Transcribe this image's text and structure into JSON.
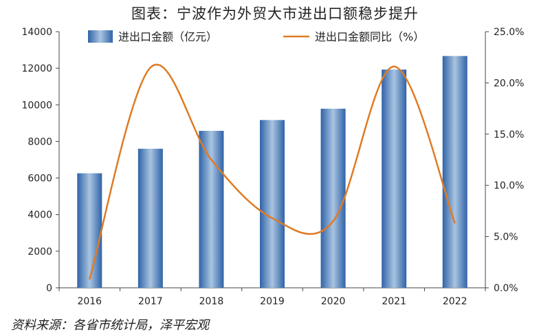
{
  "title": "图表：宁波作为外贸大市进出口额稳步提升",
  "source": "资料来源：各省市统计局，泽平宏观",
  "colors": {
    "bar": "#3a70b3",
    "bar_light": "#a9c4e0",
    "line": "#e07a22"
  },
  "chart_data": {
    "type": "bar+line",
    "categories": [
      "2016",
      "2017",
      "2018",
      "2019",
      "2020",
      "2021",
      "2022"
    ],
    "series": [
      {
        "name": "进出口金额（亿元）",
        "type": "bar",
        "axis": "left",
        "values": [
          6260,
          7600,
          8580,
          9170,
          9790,
          11930,
          12670
        ]
      },
      {
        "name": "进出口金额同比（%）",
        "type": "line",
        "axis": "right",
        "values": [
          0.8,
          21.5,
          12.5,
          6.8,
          6.5,
          21.6,
          6.3
        ]
      }
    ],
    "y_left": {
      "range": [
        0,
        14000
      ],
      "ticks": [
        "0",
        "2000",
        "4000",
        "6000",
        "8000",
        "10000",
        "12000",
        "14000"
      ]
    },
    "y_right": {
      "range": [
        0,
        25
      ],
      "ticks": [
        "0.0%",
        "5.0%",
        "10.0%",
        "15.0%",
        "20.0%",
        "25.0%"
      ]
    },
    "legend_position": "top",
    "grid": false
  }
}
